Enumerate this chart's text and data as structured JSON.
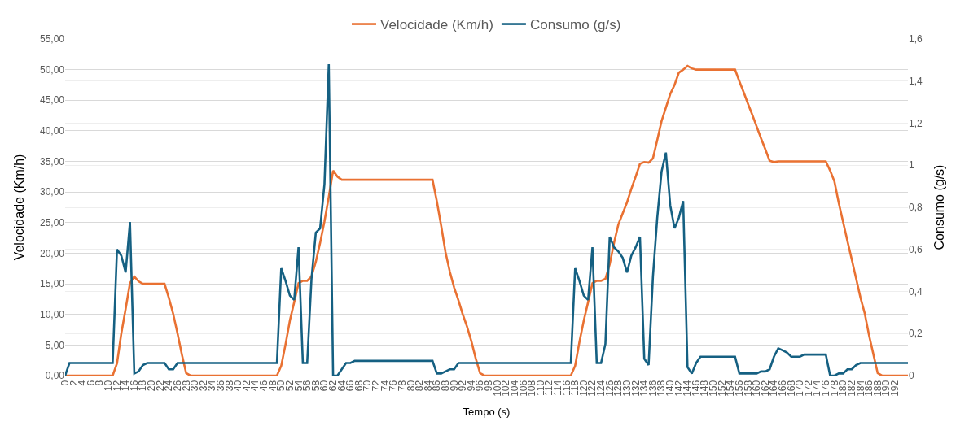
{
  "chart_data": {
    "type": "line",
    "xlabel": "Tempo (s)",
    "ylabel": "Velocidade (Km/h)",
    "y2label": "Consumo (g/s)",
    "x": [
      0,
      1,
      2,
      3,
      4,
      5,
      6,
      7,
      8,
      9,
      10,
      11,
      12,
      13,
      14,
      15,
      16,
      17,
      18,
      19,
      20,
      21,
      22,
      23,
      24,
      25,
      26,
      27,
      28,
      29,
      30,
      31,
      32,
      33,
      34,
      35,
      36,
      37,
      38,
      39,
      40,
      41,
      42,
      43,
      44,
      45,
      46,
      47,
      48,
      49,
      50,
      51,
      52,
      53,
      54,
      55,
      56,
      57,
      58,
      59,
      60,
      61,
      62,
      63,
      64,
      65,
      66,
      67,
      68,
      69,
      70,
      71,
      72,
      73,
      74,
      75,
      76,
      77,
      78,
      79,
      80,
      81,
      82,
      83,
      84,
      85,
      86,
      87,
      88,
      89,
      90,
      91,
      92,
      93,
      94,
      95,
      96,
      97,
      98,
      99,
      100,
      101,
      102,
      103,
      104,
      105,
      106,
      107,
      108,
      109,
      110,
      111,
      112,
      113,
      114,
      115,
      116,
      117,
      118,
      119,
      120,
      121,
      122,
      123,
      124,
      125,
      126,
      127,
      128,
      129,
      130,
      131,
      132,
      133,
      134,
      135,
      136,
      137,
      138,
      139,
      140,
      141,
      142,
      143,
      144,
      145,
      146,
      147,
      148,
      149,
      150,
      151,
      152,
      153,
      154,
      155,
      156,
      157,
      158,
      159,
      160,
      161,
      162,
      163,
      164,
      165,
      166,
      167,
      168,
      169,
      170,
      171,
      172,
      173,
      174,
      175,
      176,
      177,
      178,
      179,
      180,
      181,
      182,
      183,
      184,
      185,
      186,
      187,
      188,
      189,
      190,
      191,
      192,
      193,
      194,
      195
    ],
    "series": [
      {
        "name": "Velocidade (Km/h)",
        "color": "#e97132",
        "values": [
          0,
          0,
          0,
          0,
          0,
          0,
          0,
          0,
          0,
          0,
          0,
          0,
          2,
          6.9,
          10.9,
          15.1,
          16.2,
          15.4,
          15,
          15,
          15,
          15,
          15,
          15,
          12.7,
          10.1,
          6.9,
          3.5,
          0.4,
          0,
          0,
          0,
          0,
          0,
          0,
          0,
          0,
          0,
          0,
          0,
          0,
          0,
          0,
          0,
          0,
          0,
          0,
          0,
          0,
          0,
          1.6,
          5.1,
          9,
          12,
          15.1,
          15.5,
          15.5,
          16.2,
          18.6,
          21.7,
          25.2,
          29.2,
          33.5,
          32.5,
          32,
          32,
          32,
          32,
          32,
          32,
          32,
          32,
          32,
          32,
          32,
          32,
          32,
          32,
          32,
          32,
          32,
          32,
          32,
          32,
          32,
          32,
          28.5,
          24.5,
          20.2,
          17,
          14.4,
          12.3,
          10,
          8,
          5.6,
          2.8,
          0.4,
          0,
          0,
          0,
          0,
          0,
          0,
          0,
          0,
          0,
          0,
          0,
          0,
          0,
          0,
          0,
          0,
          0,
          0,
          0,
          0,
          0,
          1.6,
          5.5,
          9,
          12,
          15.1,
          15.5,
          15.5,
          15.8,
          18.2,
          21.7,
          24.7,
          26.5,
          28.3,
          30.5,
          32.5,
          34.6,
          34.9,
          34.8,
          35.5,
          38.5,
          41.6,
          43.8,
          46,
          47.5,
          49.5,
          50,
          50.6,
          50.2,
          50,
          50,
          50,
          50,
          50,
          50,
          50,
          50,
          50,
          50,
          48.1,
          46.3,
          44.4,
          42.6,
          40.7,
          38.8,
          37,
          35.1,
          34.9,
          35,
          35,
          35,
          35,
          35,
          35,
          35,
          35,
          35,
          35,
          35,
          35,
          33.5,
          31.7,
          28.2,
          25.1,
          22,
          19,
          15.9,
          12.8,
          10.2,
          6.6,
          3.5,
          0.4,
          0,
          0,
          0,
          0,
          0,
          0,
          0
        ]
      },
      {
        "name": "Consumo (g/s)",
        "color": "#156082",
        "axis": "y2",
        "values": [
          0,
          0.06,
          0.06,
          0.06,
          0.06,
          0.06,
          0.06,
          0.06,
          0.06,
          0.06,
          0.06,
          0.06,
          0.6,
          0.57,
          0.49,
          0.73,
          0.01,
          0.02,
          0.05,
          0.06,
          0.06,
          0.06,
          0.06,
          0.06,
          0.03,
          0.03,
          0.06,
          0.06,
          0.06,
          0.06,
          0.06,
          0.06,
          0.06,
          0.06,
          0.06,
          0.06,
          0.06,
          0.06,
          0.06,
          0.06,
          0.06,
          0.06,
          0.06,
          0.06,
          0.06,
          0.06,
          0.06,
          0.06,
          0.06,
          0.06,
          0.51,
          0.45,
          0.38,
          0.36,
          0.61,
          0.06,
          0.06,
          0.46,
          0.68,
          0.7,
          0.91,
          1.48,
          0,
          0,
          0.03,
          0.06,
          0.06,
          0.07,
          0.07,
          0.07,
          0.07,
          0.07,
          0.07,
          0.07,
          0.07,
          0.07,
          0.07,
          0.07,
          0.07,
          0.07,
          0.07,
          0.07,
          0.07,
          0.07,
          0.07,
          0.07,
          0.01,
          0.01,
          0.02,
          0.03,
          0.03,
          0.06,
          0.06,
          0.06,
          0.06,
          0.06,
          0.06,
          0.06,
          0.06,
          0.06,
          0.06,
          0.06,
          0.06,
          0.06,
          0.06,
          0.06,
          0.06,
          0.06,
          0.06,
          0.06,
          0.06,
          0.06,
          0.06,
          0.06,
          0.06,
          0.06,
          0.06,
          0.06,
          0.51,
          0.45,
          0.38,
          0.36,
          0.61,
          0.06,
          0.06,
          0.15,
          0.66,
          0.61,
          0.59,
          0.56,
          0.49,
          0.57,
          0.61,
          0.66,
          0.08,
          0.05,
          0.47,
          0.75,
          0.97,
          1.06,
          0.81,
          0.7,
          0.75,
          0.83,
          0.04,
          0.01,
          0.06,
          0.09,
          0.09,
          0.09,
          0.09,
          0.09,
          0.09,
          0.09,
          0.09,
          0.09,
          0.01,
          0.01,
          0.01,
          0.01,
          0.01,
          0.02,
          0.02,
          0.03,
          0.09,
          0.13,
          0.12,
          0.11,
          0.09,
          0.09,
          0.09,
          0.1,
          0.1,
          0.1,
          0.1,
          0.1,
          0.1,
          0,
          0,
          0.01,
          0.01,
          0.03,
          0.03,
          0.05,
          0.06,
          0.06,
          0.06,
          0.06,
          0.06,
          0.06,
          0.06,
          0.06,
          0.06,
          0.06,
          0.06,
          0.06
        ]
      }
    ],
    "xlim": [
      0,
      195
    ],
    "xticks": [
      0,
      2,
      4,
      6,
      8,
      10,
      12,
      14,
      16,
      18,
      20,
      22,
      24,
      26,
      28,
      30,
      32,
      34,
      36,
      38,
      40,
      42,
      44,
      46,
      48,
      50,
      52,
      54,
      56,
      58,
      60,
      62,
      64,
      66,
      68,
      70,
      72,
      74,
      76,
      78,
      80,
      82,
      84,
      86,
      88,
      90,
      92,
      94,
      96,
      98,
      100,
      102,
      104,
      106,
      108,
      110,
      112,
      114,
      116,
      118,
      120,
      122,
      124,
      126,
      128,
      130,
      132,
      134,
      136,
      138,
      140,
      142,
      144,
      146,
      148,
      150,
      152,
      154,
      156,
      158,
      160,
      162,
      164,
      166,
      168,
      170,
      172,
      174,
      176,
      178,
      180,
      182,
      184,
      186,
      188,
      190,
      192
    ],
    "ylim": [
      0,
      55
    ],
    "yticks": [
      {
        "value": 0,
        "label": "0,00"
      },
      {
        "value": 5,
        "label": "5,00"
      },
      {
        "value": 10,
        "label": "10,00"
      },
      {
        "value": 15,
        "label": "15,00"
      },
      {
        "value": 20,
        "label": "20,00"
      },
      {
        "value": 25,
        "label": "25,00"
      },
      {
        "value": 30,
        "label": "30,00"
      },
      {
        "value": 35,
        "label": "35,00"
      },
      {
        "value": 40,
        "label": "40,00"
      },
      {
        "value": 45,
        "label": "45,00"
      },
      {
        "value": 50,
        "label": "50,00"
      },
      {
        "value": 55,
        "label": "55,00"
      }
    ],
    "y2lim": [
      0,
      1.6
    ],
    "y2ticks": [
      0,
      {
        "value": 0.2,
        "label": "0,2"
      },
      {
        "value": 0.4,
        "label": "0,4"
      },
      {
        "value": 0.6,
        "label": "0,6"
      },
      {
        "value": 0.8,
        "label": "0,8"
      },
      1,
      {
        "value": 1.2,
        "label": "1,2"
      },
      {
        "value": 1.4,
        "label": "1,4"
      },
      {
        "value": 1.6,
        "label": "1,6"
      }
    ],
    "grid": "y",
    "legend": "top",
    "marker": "none",
    "line_style": "solid"
  }
}
